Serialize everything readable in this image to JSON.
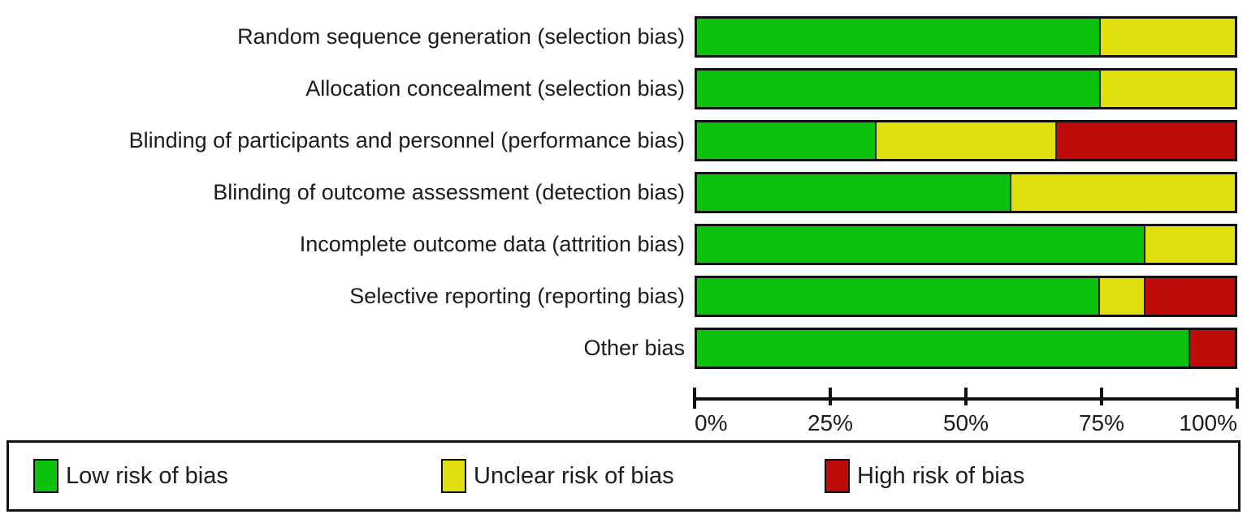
{
  "chart_data": {
    "type": "bar",
    "subtype": "horizontal-stacked-percentage",
    "title": "",
    "xlabel": "",
    "ylabel": "",
    "xlim": [
      0,
      100
    ],
    "grid": false,
    "legend_position": "bottom",
    "x_ticks": [
      {
        "value": 0,
        "label": "0%"
      },
      {
        "value": 25,
        "label": "25%"
      },
      {
        "value": 50,
        "label": "50%"
      },
      {
        "value": 75,
        "label": "75%"
      },
      {
        "value": 100,
        "label": "100%"
      }
    ],
    "categories": [
      "Random sequence generation (selection bias)",
      "Allocation concealment (selection bias)",
      "Blinding of participants and personnel (performance bias)",
      "Blinding of outcome assessment (detection bias)",
      "Incomplete outcome data (attrition bias)",
      "Selective reporting (reporting bias)",
      "Other bias"
    ],
    "series": [
      {
        "name": "Low risk of bias",
        "color": "#0cc20c",
        "values": [
          75,
          75,
          33.3,
          58.3,
          83.3,
          75,
          91.7
        ]
      },
      {
        "name": "Unclear risk of bias",
        "color": "#e2df0e",
        "values": [
          25,
          25,
          33.4,
          41.7,
          16.7,
          8.3,
          0
        ]
      },
      {
        "name": "High risk of bias",
        "color": "#c00b0b",
        "values": [
          0,
          0,
          33.3,
          0,
          0,
          16.7,
          8.3
        ]
      }
    ]
  },
  "legend": {
    "items": [
      {
        "label": "Low risk of bias",
        "color": "#0cc20c"
      },
      {
        "label": "Unclear risk of bias",
        "color": "#e2df0e"
      },
      {
        "label": "High risk of bias",
        "color": "#c00b0b"
      }
    ]
  }
}
